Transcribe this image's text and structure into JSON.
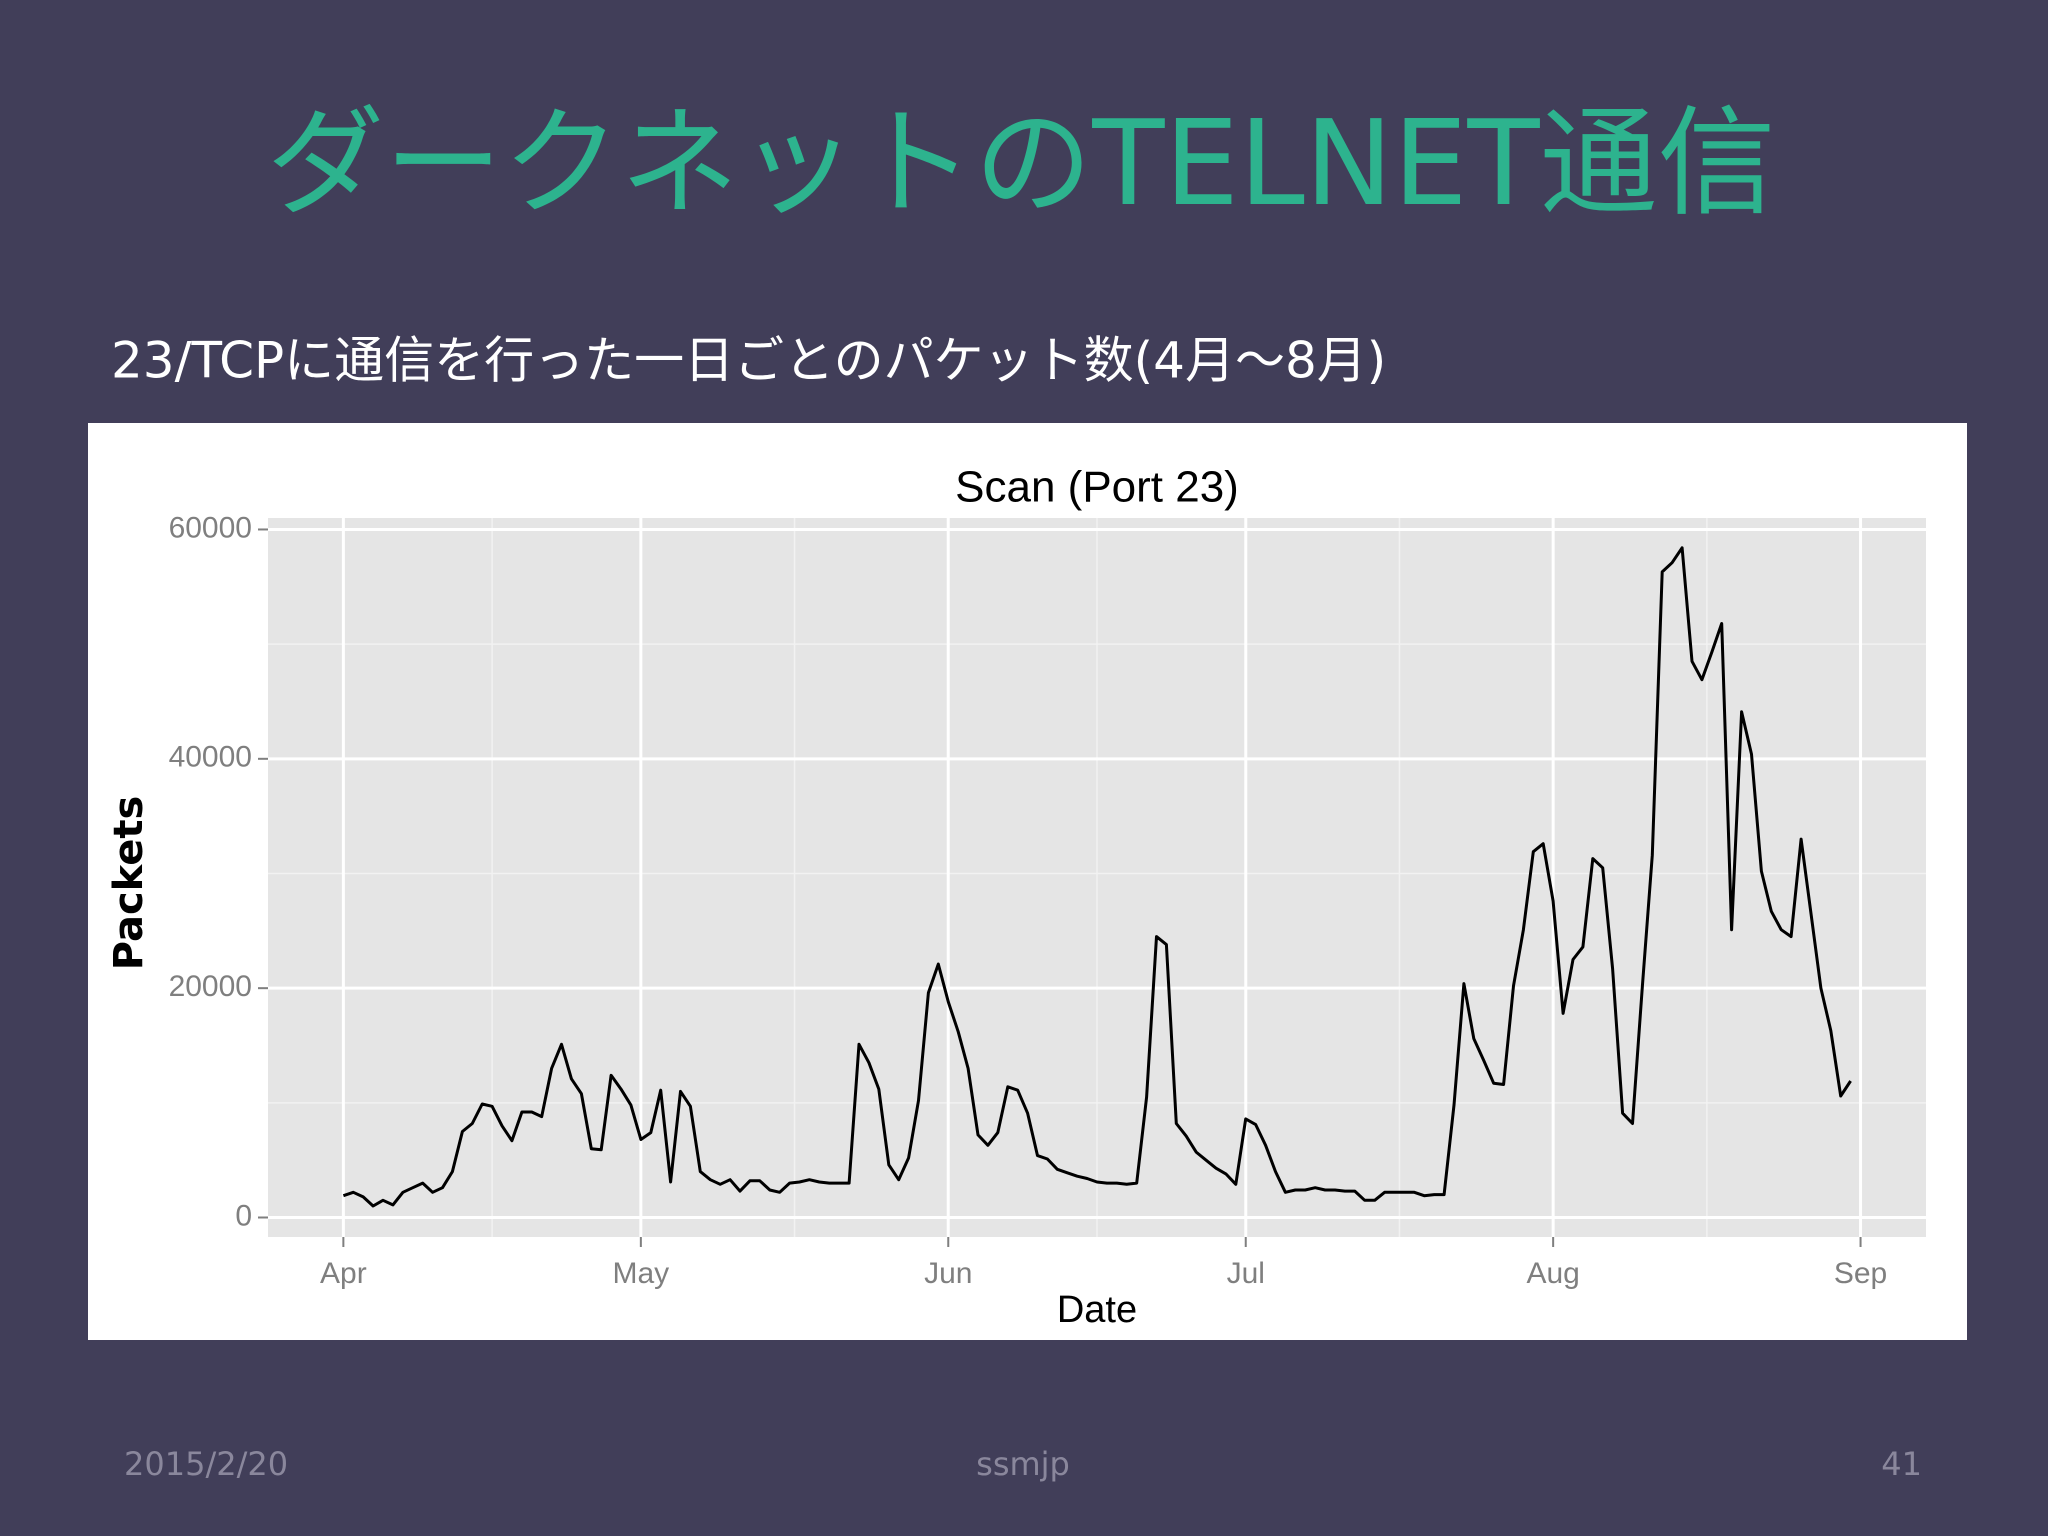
{
  "slide": {
    "title": "ダークネットのTELNET通信",
    "subtitle": "23/TCPに通信を行った一日ごとのパケット数(4月～8月)",
    "footer": {
      "date": "2015/2/20",
      "center": "ssmjp",
      "page": "41"
    }
  },
  "chart_data": {
    "type": "line",
    "title": "Scan (Port 23)",
    "xlabel": "Date",
    "ylabel": "Packets",
    "color": "#000000",
    "grid": true,
    "xlim": [
      -7.6,
      159.6
    ],
    "xticks": [
      {
        "value": 0,
        "label": "Apr"
      },
      {
        "value": 30,
        "label": "May"
      },
      {
        "value": 61,
        "label": "Jun"
      },
      {
        "value": 91,
        "label": "Jul"
      },
      {
        "value": 122,
        "label": "Aug"
      },
      {
        "value": 153,
        "label": "Sep"
      }
    ],
    "xminor": [
      15,
      45.5,
      76,
      106.5,
      137.5
    ],
    "ylim": [
      -1700,
      61000
    ],
    "yticks": [
      0,
      20000,
      40000,
      60000
    ],
    "yminor": [
      10000,
      30000,
      50000
    ],
    "x": [
      0,
      1,
      2,
      3,
      4,
      5,
      6,
      7,
      8,
      9,
      10,
      11,
      12,
      13,
      14,
      15,
      16,
      17,
      18,
      19,
      20,
      21,
      22,
      23,
      24,
      25,
      26,
      27,
      28,
      29,
      30,
      31,
      32,
      33,
      34,
      35,
      36,
      37,
      38,
      39,
      40,
      41,
      42,
      43,
      44,
      45,
      46,
      47,
      48,
      49,
      50,
      51,
      52,
      53,
      54,
      55,
      56,
      57,
      58,
      59,
      60,
      61,
      62,
      63,
      64,
      65,
      66,
      67,
      68,
      69,
      70,
      71,
      72,
      73,
      74,
      75,
      76,
      77,
      78,
      79,
      80,
      81,
      82,
      83,
      84,
      85,
      86,
      87,
      88,
      89,
      90,
      91,
      92,
      93,
      94,
      95,
      96,
      97,
      98,
      99,
      100,
      101,
      102,
      103,
      104,
      105,
      106,
      107,
      108,
      109,
      110,
      111,
      112,
      113,
      114,
      115,
      116,
      117,
      118,
      119,
      120,
      121,
      122,
      123,
      124,
      125,
      126,
      127,
      128,
      129,
      130,
      131,
      132,
      133,
      134,
      135,
      136,
      137,
      138,
      139,
      140,
      141,
      142,
      143,
      144,
      145,
      146,
      147,
      148,
      149,
      150,
      151,
      152
    ],
    "values": [
      1900,
      2200,
      1800,
      1000,
      1500,
      1100,
      2200,
      2600,
      3000,
      2200,
      2600,
      4000,
      7500,
      8200,
      9900,
      9700,
      8000,
      6700,
      9200,
      9200,
      8800,
      13000,
      15100,
      12100,
      10800,
      6000,
      5900,
      12400,
      11200,
      9800,
      6800,
      7400,
      11100,
      3100,
      11000,
      9700,
      4000,
      3300,
      2900,
      3300,
      2300,
      3200,
      3200,
      2400,
      2200,
      3000,
      3100,
      3300,
      3100,
      3000,
      3000,
      3000,
      15100,
      13500,
      11200,
      4600,
      3300,
      5200,
      10200,
      19600,
      22100,
      18800,
      16200,
      13000,
      7200,
      6300,
      7400,
      11400,
      11100,
      9100,
      5400,
      5100,
      4200,
      3900,
      3600,
      3400,
      3100,
      3000,
      3000,
      2900,
      3000,
      10500,
      24500,
      23800,
      8200,
      7100,
      5700,
      5000,
      4300,
      3800,
      2900,
      8600,
      8100,
      6300,
      4000,
      2200,
      2400,
      2400,
      2600,
      2400,
      2400,
      2300,
      2300,
      1500,
      1500,
      2200,
      2200,
      2200,
      2200,
      1900,
      2000,
      2000,
      9800,
      20400,
      15600,
      13700,
      11700,
      11600,
      20200,
      25100,
      31900,
      32600,
      27600,
      17800,
      22500,
      23600,
      31300,
      30500,
      21700,
      9100,
      8200,
      20200,
      31600,
      56300,
      57100,
      58400,
      48500,
      46900,
      49300,
      51800,
      25100,
      44100,
      40400,
      30200,
      26700,
      25100,
      24500,
      33000,
      26500,
      20000,
      16300,
      10600,
      11900
    ]
  }
}
